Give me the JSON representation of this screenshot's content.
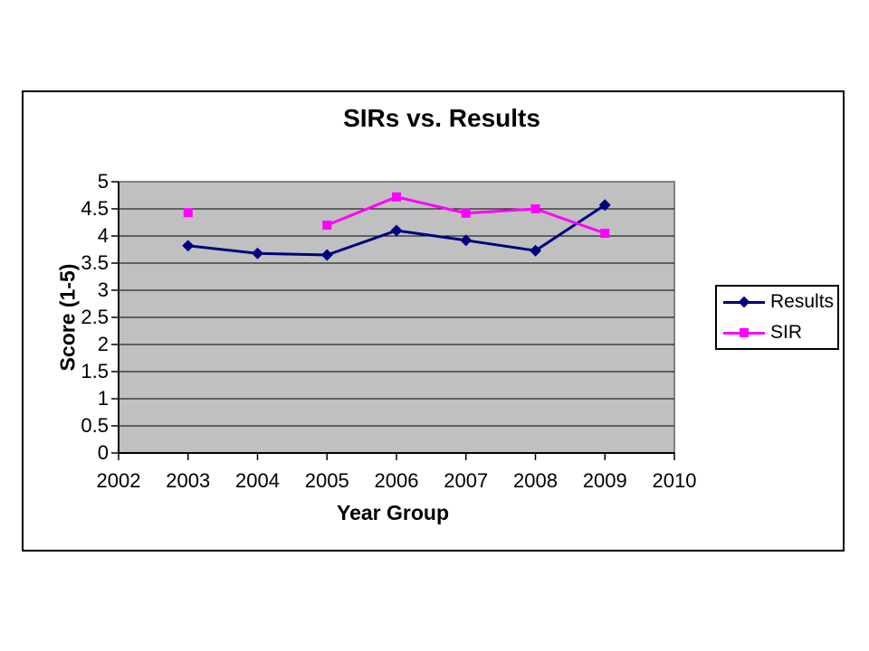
{
  "page": {
    "background": "#FFFFFF"
  },
  "chart_data": {
    "type": "line",
    "title": "SIRs vs. Results",
    "xlabel": "Year Group",
    "ylabel": "Score (1-5)",
    "x": [
      2003,
      2004,
      2005,
      2006,
      2007,
      2008,
      2009
    ],
    "series": [
      {
        "name": "Results",
        "color": "#000080",
        "marker": "diamond",
        "values": [
          3.82,
          3.68,
          3.65,
          4.1,
          3.92,
          3.73,
          4.57
        ]
      },
      {
        "name": "SIR",
        "color": "#FF00FF",
        "marker": "square",
        "values": [
          4.43,
          null,
          4.2,
          4.72,
          4.42,
          4.5,
          4.05
        ]
      }
    ],
    "xlim": [
      2002,
      2010
    ],
    "xticks": [
      "2002",
      "2003",
      "2004",
      "2005",
      "2006",
      "2007",
      "2008",
      "2009",
      "2010"
    ],
    "ylim": [
      0,
      5
    ],
    "ytick_step": 0.5,
    "yticks": [
      "0",
      "0.5",
      "1",
      "1.5",
      "2",
      "2.5",
      "3",
      "3.5",
      "4",
      "4.5",
      "5"
    ],
    "grid": "horizontal",
    "legend_position": "right",
    "plot_bg": "#C0C0C0",
    "gridline_color": "#000000",
    "plot_border_color": "#808080",
    "axis_color": "#000000"
  }
}
